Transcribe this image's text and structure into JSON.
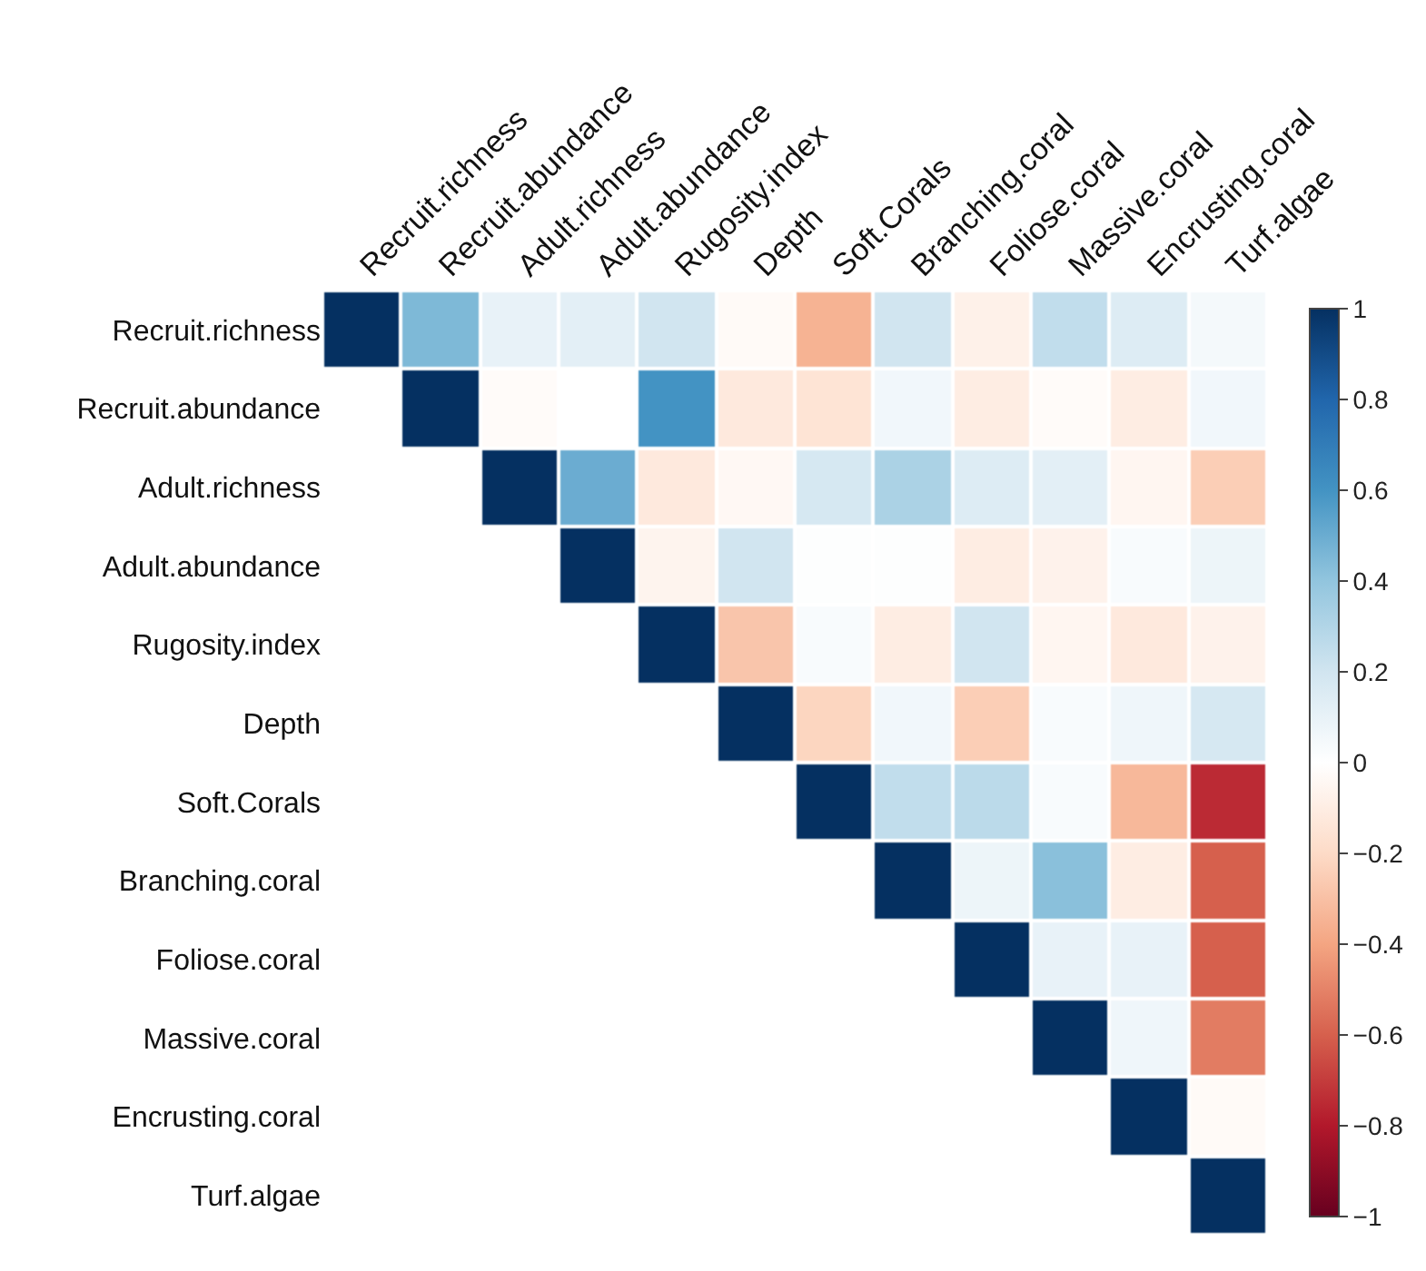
{
  "chart_data": {
    "type": "heatmap",
    "categories": [
      "Recruit.richness",
      "Recruit.abundance",
      "Adult.richness",
      "Adult.abundance",
      "Rugosity.index",
      "Depth",
      "Soft.Corals",
      "Branching.coral",
      "Foliose.coral",
      "Massive.coral",
      "Encrusting.coral",
      "Turf.algae"
    ],
    "y_categories": [
      "Recruit.richness",
      "Recruit.abundance",
      "Adult.richness",
      "Adult.abundance",
      "Rugosity.index",
      "Depth",
      "Soft.Corals",
      "Branching.coral",
      "Foliose.coral",
      "Massive.coral",
      "Encrusting.coral",
      "Turf.algae"
    ],
    "cells": [
      [
        1,
        0.45,
        0.1,
        0.12,
        0.2,
        -0.03,
        -0.35,
        0.2,
        -0.08,
        0.25,
        0.15,
        0.05
      ],
      [
        null,
        1,
        -0.02,
        0.0,
        0.6,
        -0.12,
        -0.15,
        0.06,
        -0.1,
        -0.02,
        -0.1,
        0.06
      ],
      [
        null,
        null,
        1,
        0.5,
        -0.12,
        -0.04,
        0.18,
        0.32,
        0.15,
        0.12,
        -0.05,
        -0.25
      ],
      [
        null,
        null,
        null,
        1,
        -0.06,
        0.2,
        0.01,
        0.01,
        -0.1,
        -0.07,
        0.03,
        0.08
      ],
      [
        null,
        null,
        null,
        null,
        1,
        -0.28,
        0.03,
        -0.1,
        0.2,
        -0.05,
        -0.12,
        -0.07
      ],
      [
        null,
        null,
        null,
        null,
        null,
        1,
        -0.22,
        0.06,
        -0.25,
        0.03,
        0.07,
        0.18
      ],
      [
        null,
        null,
        null,
        null,
        null,
        null,
        1,
        0.25,
        0.27,
        0.03,
        -0.33,
        -0.75
      ],
      [
        null,
        null,
        null,
        null,
        null,
        null,
        null,
        1,
        0.08,
        0.42,
        -0.1,
        -0.6
      ],
      [
        null,
        null,
        null,
        null,
        null,
        null,
        null,
        null,
        1,
        0.1,
        0.1,
        -0.6
      ],
      [
        null,
        null,
        null,
        null,
        null,
        null,
        null,
        null,
        null,
        1,
        0.07,
        -0.52
      ],
      [
        null,
        null,
        null,
        null,
        null,
        null,
        null,
        null,
        null,
        null,
        1,
        -0.03
      ],
      [
        null,
        null,
        null,
        null,
        null,
        null,
        null,
        null,
        null,
        null,
        null,
        1
      ]
    ],
    "clim": [
      -1,
      1
    ],
    "cticks": [
      -1,
      -0.8,
      -0.6,
      -0.4,
      -0.2,
      0,
      0.2,
      0.4,
      0.6,
      0.8,
      1
    ]
  }
}
